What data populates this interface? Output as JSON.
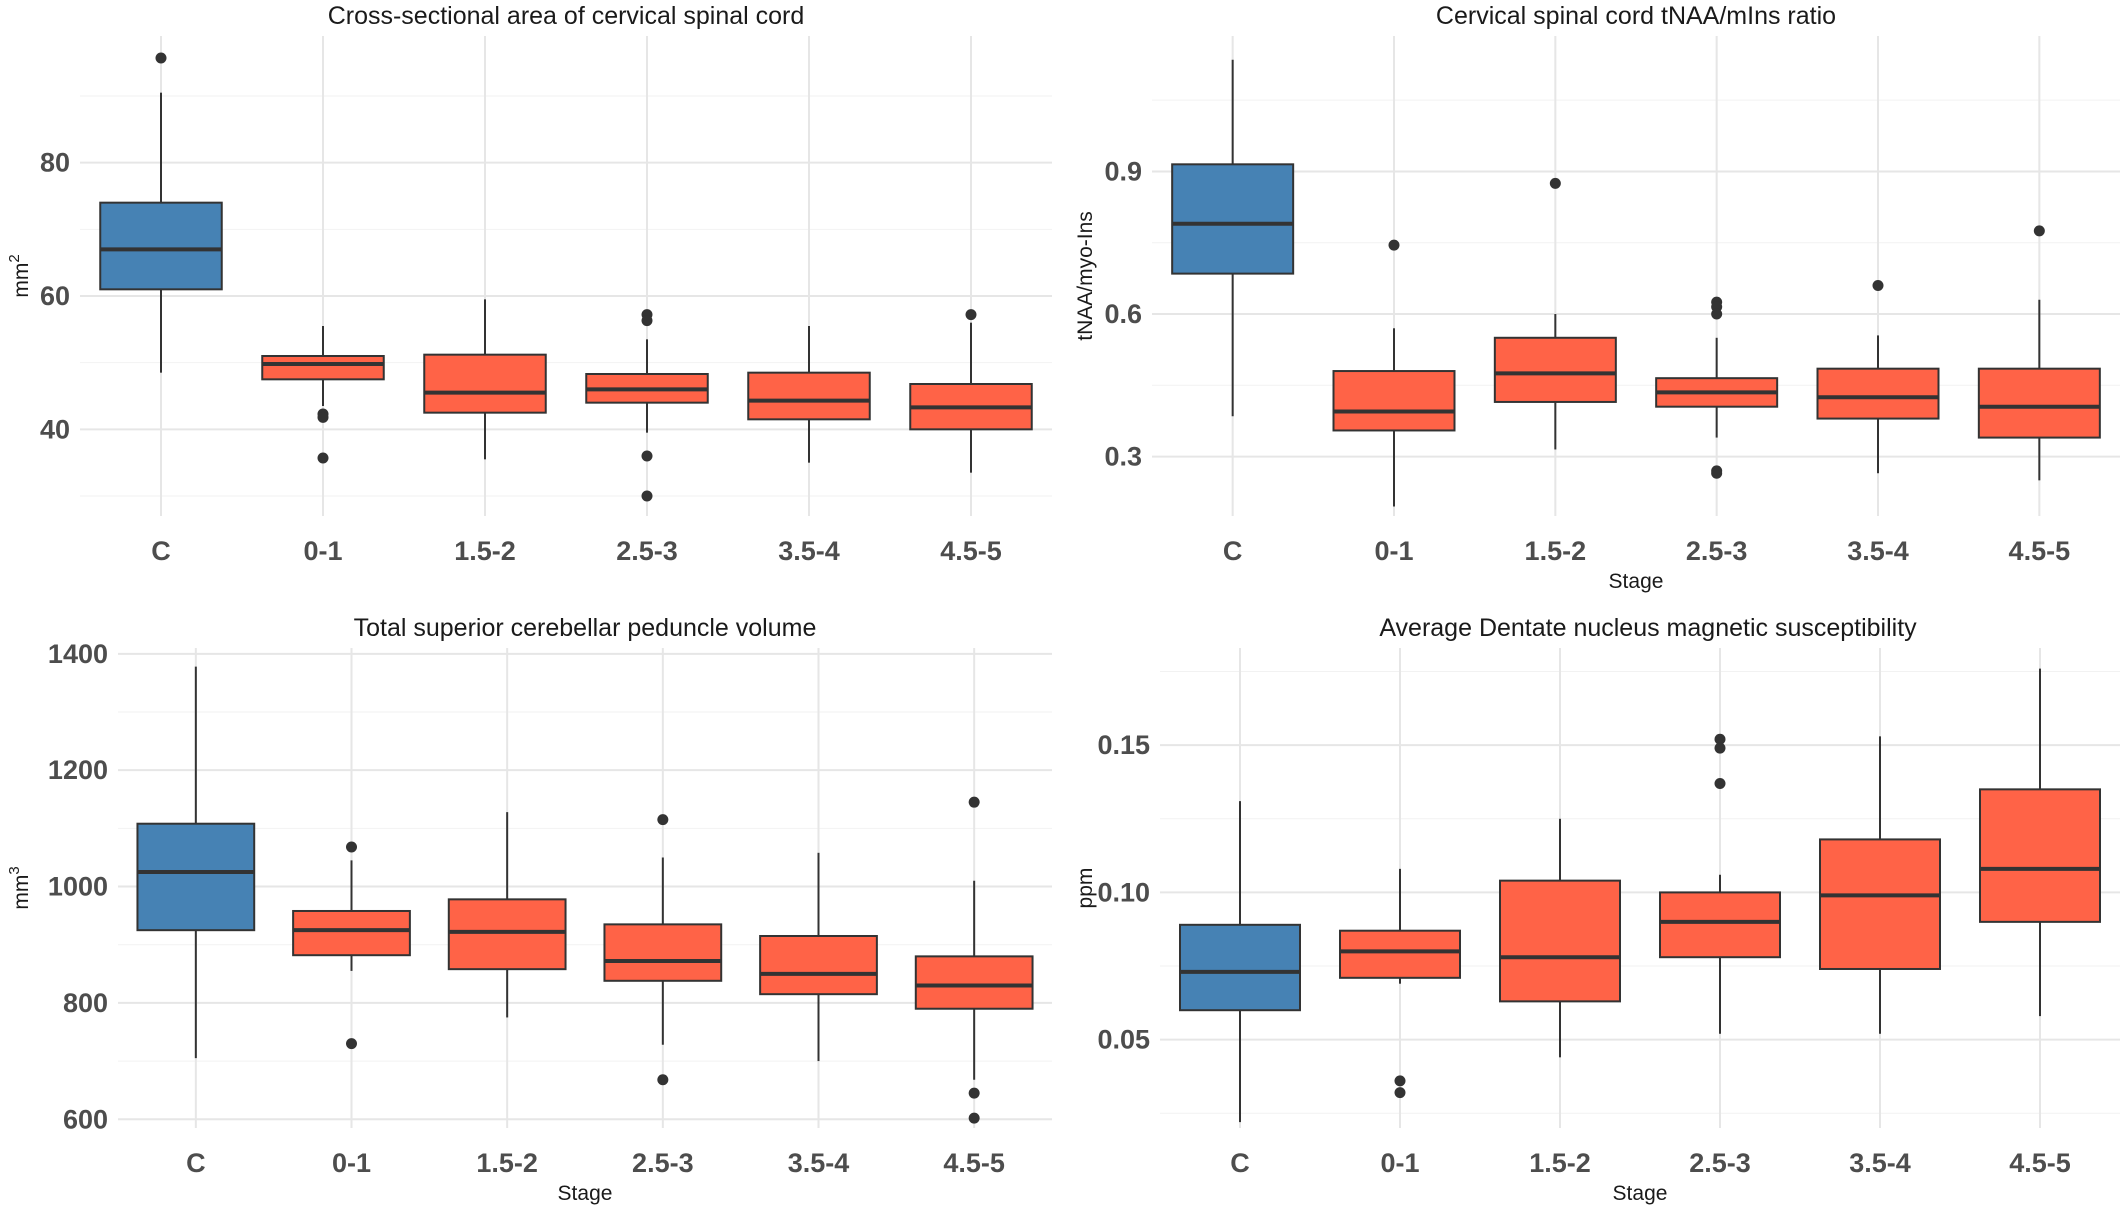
{
  "chart_data": [
    {
      "type": "box",
      "title": "Cross-sectional area of cervical spinal cord",
      "xlabel": "",
      "ylabel": "mm",
      "ylabel_sup": "2",
      "ylim": [
        27,
        99
      ],
      "yticks": [
        {
          "v": 40,
          "label": "40"
        },
        {
          "v": 60,
          "label": "60"
        },
        {
          "v": 80,
          "label": "80"
        }
      ],
      "categories": [
        "C",
        "0-1",
        "1.5-2",
        "2.5-3",
        "3.5-4",
        "4.5-5"
      ],
      "colors": [
        "#4682b4",
        "#ff6347",
        "#ff6347",
        "#ff6347",
        "#ff6347",
        "#ff6347"
      ],
      "boxes": [
        {
          "low": 48.5,
          "q1": 61,
          "median": 67,
          "q3": 74,
          "high": 90.5,
          "outliers": [
            95.7
          ]
        },
        {
          "low": 43.5,
          "q1": 47.5,
          "median": 49.8,
          "q3": 51,
          "high": 55.5,
          "outliers": [
            42.3,
            41.8,
            35.7
          ]
        },
        {
          "low": 35.5,
          "q1": 42.5,
          "median": 45.5,
          "q3": 51.2,
          "high": 59.5,
          "outliers": []
        },
        {
          "low": 39.5,
          "q1": 44,
          "median": 46,
          "q3": 48.3,
          "high": 53.5,
          "outliers": [
            57.2,
            56.3,
            36,
            30
          ]
        },
        {
          "low": 35,
          "q1": 41.5,
          "median": 44.3,
          "q3": 48.5,
          "high": 55.5,
          "outliers": []
        },
        {
          "low": 33.5,
          "q1": 40,
          "median": 43.3,
          "q3": 46.8,
          "high": 56,
          "outliers": [
            57.2
          ]
        }
      ]
    },
    {
      "type": "box",
      "title": "Cervical spinal cord tNAA/mIns ratio",
      "xlabel": "Stage",
      "ylabel": "tNAA/myo-Ins",
      "ylabel_sup": "",
      "ylim": [
        0.175,
        1.185
      ],
      "yticks": [
        {
          "v": 0.3,
          "label": "0.3"
        },
        {
          "v": 0.6,
          "label": "0.6"
        },
        {
          "v": 0.9,
          "label": "0.9"
        }
      ],
      "categories": [
        "C",
        "0-1",
        "1.5-2",
        "2.5-3",
        "3.5-4",
        "4.5-5"
      ],
      "colors": [
        "#4682b4",
        "#ff6347",
        "#ff6347",
        "#ff6347",
        "#ff6347",
        "#ff6347"
      ],
      "boxes": [
        {
          "low": 0.385,
          "q1": 0.685,
          "median": 0.79,
          "q3": 0.915,
          "high": 1.135,
          "outliers": []
        },
        {
          "low": 0.195,
          "q1": 0.355,
          "median": 0.395,
          "q3": 0.48,
          "high": 0.57,
          "outliers": [
            0.745
          ]
        },
        {
          "low": 0.315,
          "q1": 0.415,
          "median": 0.475,
          "q3": 0.55,
          "high": 0.6,
          "outliers": [
            0.875
          ]
        },
        {
          "low": 0.34,
          "q1": 0.405,
          "median": 0.435,
          "q3": 0.465,
          "high": 0.55,
          "outliers": [
            0.625,
            0.615,
            0.6,
            0.27,
            0.265
          ]
        },
        {
          "low": 0.265,
          "q1": 0.38,
          "median": 0.425,
          "q3": 0.485,
          "high": 0.555,
          "outliers": [
            0.66
          ]
        },
        {
          "low": 0.25,
          "q1": 0.34,
          "median": 0.405,
          "q3": 0.485,
          "high": 0.63,
          "outliers": [
            0.775
          ]
        }
      ]
    },
    {
      "type": "box",
      "title": "Total superior cerebellar peduncle volume",
      "xlabel": "Stage",
      "ylabel": "mm",
      "ylabel_sup": "3",
      "ylim": [
        585,
        1410
      ],
      "yticks": [
        {
          "v": 600,
          "label": "600"
        },
        {
          "v": 800,
          "label": "800"
        },
        {
          "v": 1000,
          "label": "1000"
        },
        {
          "v": 1200,
          "label": "1200"
        },
        {
          "v": 1400,
          "label": "1400"
        }
      ],
      "categories": [
        "C",
        "0-1",
        "1.5-2",
        "2.5-3",
        "3.5-4",
        "4.5-5"
      ],
      "colors": [
        "#4682b4",
        "#ff6347",
        "#ff6347",
        "#ff6347",
        "#ff6347",
        "#ff6347"
      ],
      "boxes": [
        {
          "low": 705,
          "q1": 925,
          "median": 1025,
          "q3": 1108,
          "high": 1378,
          "outliers": []
        },
        {
          "low": 855,
          "q1": 882,
          "median": 925,
          "q3": 958,
          "high": 1045,
          "outliers": [
            1068,
            730
          ]
        },
        {
          "low": 775,
          "q1": 858,
          "median": 922,
          "q3": 978,
          "high": 1128,
          "outliers": []
        },
        {
          "low": 728,
          "q1": 838,
          "median": 872,
          "q3": 935,
          "high": 1050,
          "outliers": [
            1115,
            668
          ]
        },
        {
          "low": 700,
          "q1": 815,
          "median": 850,
          "q3": 915,
          "high": 1058,
          "outliers": []
        },
        {
          "low": 668,
          "q1": 790,
          "median": 830,
          "q3": 880,
          "high": 1010,
          "outliers": [
            1145,
            645,
            602
          ]
        }
      ]
    },
    {
      "type": "box",
      "title": "Average Dentate nucleus magnetic susceptibility",
      "xlabel": "Stage",
      "ylabel": "ppm",
      "ylabel_sup": "",
      "ylim": [
        0.02,
        0.183
      ],
      "yticks": [
        {
          "v": 0.05,
          "label": "0.05"
        },
        {
          "v": 0.1,
          "label": "0.10"
        },
        {
          "v": 0.15,
          "label": "0.15"
        }
      ],
      "categories": [
        "C",
        "0-1",
        "1.5-2",
        "2.5-3",
        "3.5-4",
        "4.5-5"
      ],
      "colors": [
        "#4682b4",
        "#ff6347",
        "#ff6347",
        "#ff6347",
        "#ff6347",
        "#ff6347"
      ],
      "boxes": [
        {
          "low": 0.022,
          "q1": 0.06,
          "median": 0.073,
          "q3": 0.089,
          "high": 0.131,
          "outliers": []
        },
        {
          "low": 0.069,
          "q1": 0.071,
          "median": 0.08,
          "q3": 0.087,
          "high": 0.108,
          "outliers": [
            0.036,
            0.032
          ]
        },
        {
          "low": 0.044,
          "q1": 0.063,
          "median": 0.078,
          "q3": 0.104,
          "high": 0.125,
          "outliers": []
        },
        {
          "low": 0.052,
          "q1": 0.078,
          "median": 0.09,
          "q3": 0.1,
          "high": 0.106,
          "outliers": [
            0.152,
            0.149,
            0.137
          ]
        },
        {
          "low": 0.052,
          "q1": 0.074,
          "median": 0.099,
          "q3": 0.118,
          "high": 0.153,
          "outliers": []
        },
        {
          "low": 0.058,
          "q1": 0.09,
          "median": 0.108,
          "q3": 0.135,
          "high": 0.176,
          "outliers": []
        }
      ]
    }
  ]
}
